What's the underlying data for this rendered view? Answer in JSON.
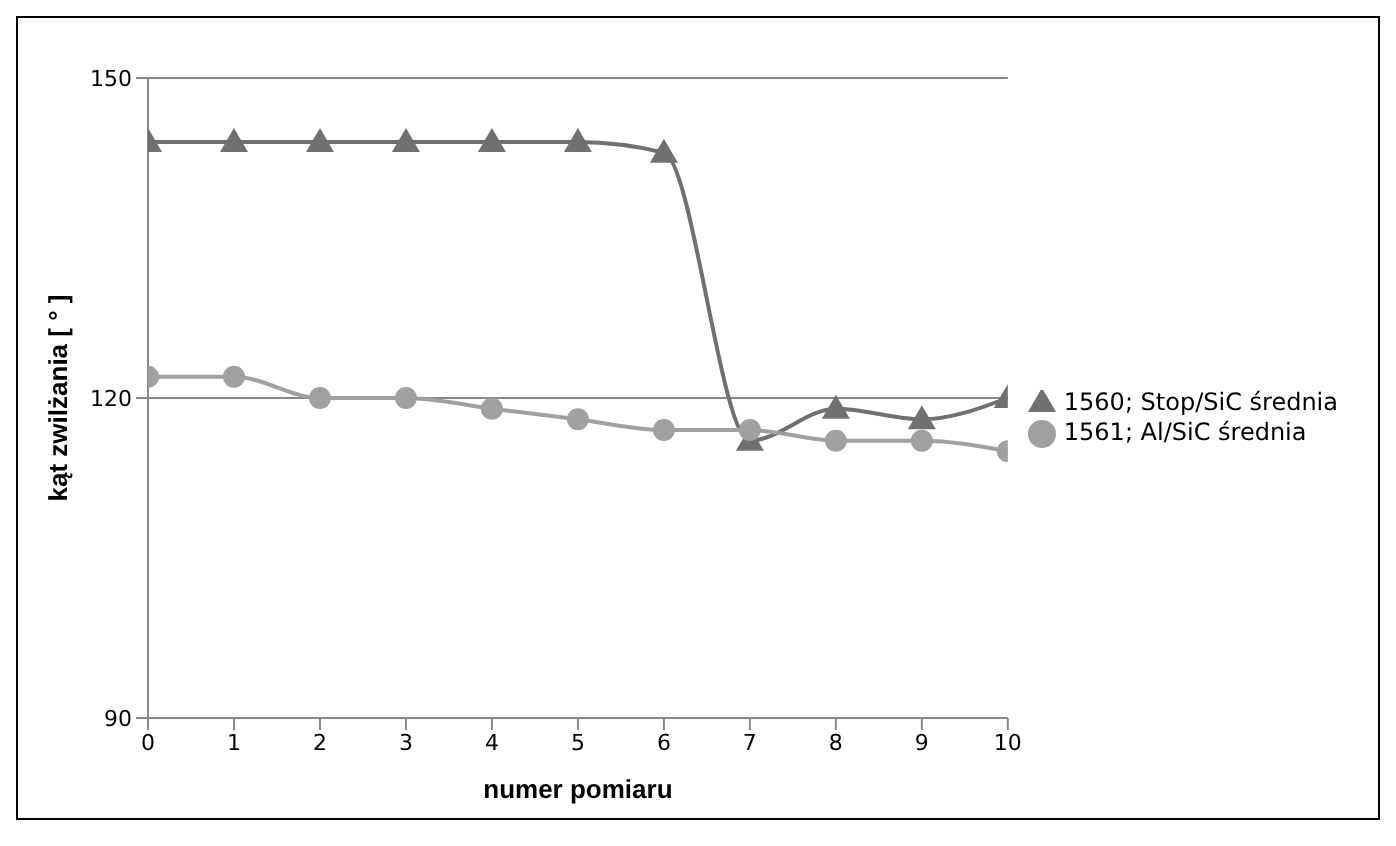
{
  "chart_data": {
    "type": "line",
    "xlabel": "numer pomiaru",
    "ylabel": "kąt zwilżania [ ° ]",
    "x": [
      0,
      1,
      2,
      3,
      4,
      5,
      6,
      7,
      8,
      9,
      10
    ],
    "series": [
      {
        "name": "1560; Stop/SiC średnia",
        "color": "#707070",
        "marker": "triangle",
        "values": [
          144,
          144,
          144,
          144,
          144,
          144,
          143,
          116,
          119,
          118,
          120
        ]
      },
      {
        "name": "1561; Al/SiC średnia",
        "color": "#a0a0a0",
        "marker": "circle",
        "values": [
          122,
          122,
          120,
          120,
          119,
          118,
          117,
          117,
          116,
          116,
          115
        ]
      }
    ],
    "xlim": [
      0,
      10
    ],
    "xticks": [
      0,
      1,
      2,
      3,
      4,
      5,
      6,
      7,
      8,
      9,
      10
    ],
    "ylim": [
      90,
      150
    ],
    "yticks": [
      90,
      120,
      150
    ],
    "grid": "y",
    "legend": "right"
  }
}
